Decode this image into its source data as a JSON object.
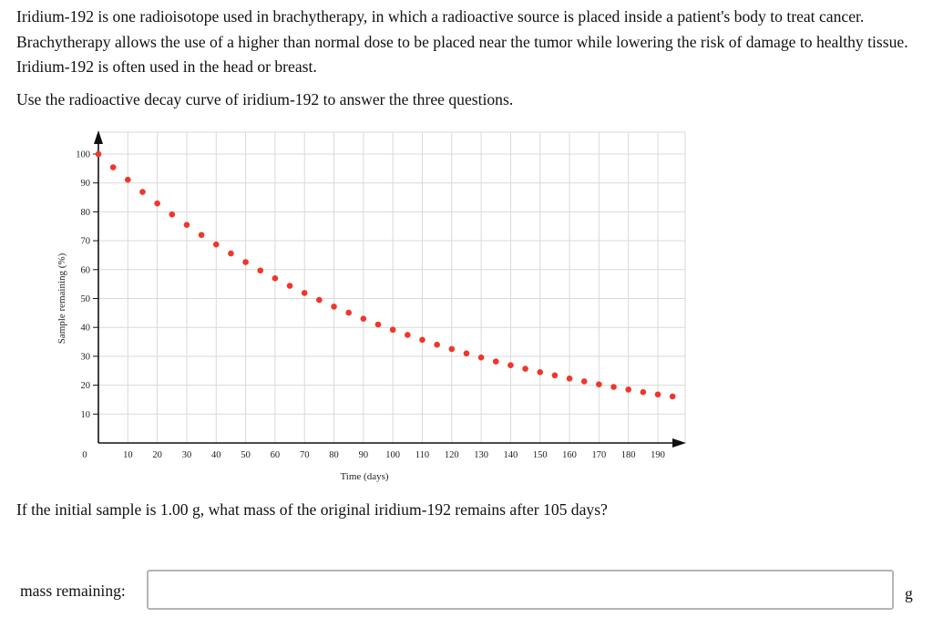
{
  "intro_text": "Iridium-192 is one radioisotope used in brachytherapy, in which a radioactive source is placed inside a patient's body to treat cancer. Brachytherapy allows the use of a higher than normal dose to be placed near the tumor while lowering the risk of damage to healthy tissue. Iridium-192 is often used in the head or breast.",
  "instruction": "Use the radioactive decay curve of iridium-192 to answer the three questions.",
  "question": "If the initial sample is 1.00 g, what mass of the original iridium-192 remains after 105 days?",
  "answer": {
    "label": "mass remaining:",
    "value": "",
    "unit": "g"
  },
  "chart_data": {
    "type": "scatter",
    "xlabel": "Time (days)",
    "ylabel": "Sample remaining (%)",
    "xlim": [
      0,
      190
    ],
    "ylim": [
      0,
      100
    ],
    "x_ticks": [
      0,
      10,
      20,
      30,
      40,
      50,
      60,
      70,
      80,
      90,
      100,
      110,
      120,
      130,
      140,
      150,
      160,
      170,
      180,
      190
    ],
    "y_ticks": [
      10,
      20,
      30,
      40,
      50,
      60,
      70,
      80,
      90,
      100
    ],
    "grid": true,
    "point_color": "#f0362c",
    "x": [
      0,
      5,
      10,
      15,
      20,
      25,
      30,
      35,
      40,
      45,
      50,
      55,
      60,
      65,
      70,
      75,
      80,
      85,
      90,
      95,
      100,
      105,
      110,
      115,
      120,
      125,
      130,
      135,
      140,
      145,
      150,
      155,
      160,
      165,
      170,
      175,
      180,
      185,
      190,
      195
    ],
    "y": [
      100,
      95.4,
      91.1,
      86.9,
      82.9,
      79.1,
      75.5,
      72.0,
      68.7,
      65.6,
      62.6,
      59.7,
      57.0,
      54.4,
      51.9,
      49.5,
      47.2,
      45.1,
      43.0,
      41.0,
      39.2,
      37.4,
      35.7,
      34.0,
      32.5,
      31.0,
      29.6,
      28.2,
      26.9,
      25.7,
      24.5,
      23.4,
      22.3,
      21.3,
      20.3,
      19.4,
      18.5,
      17.6,
      16.8,
      16.1
    ]
  }
}
